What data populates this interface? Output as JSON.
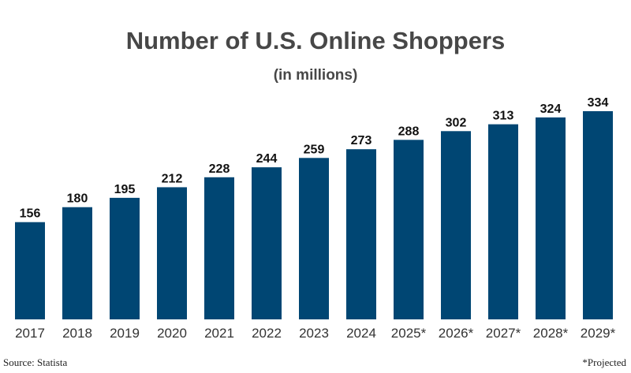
{
  "chart_data": {
    "type": "bar",
    "title": "Number of U.S. Online Shoppers",
    "subtitle": "(in millions)",
    "categories": [
      "2017",
      "2018",
      "2019",
      "2020",
      "2021",
      "2022",
      "2023",
      "2024",
      "2025*",
      "2026*",
      "2027*",
      "2028*",
      "2029*"
    ],
    "values": [
      156,
      180,
      195,
      212,
      228,
      244,
      259,
      273,
      288,
      302,
      313,
      324,
      334
    ],
    "xlabel": "",
    "ylabel": "",
    "ylim": [
      0,
      334
    ],
    "grid": false,
    "legend": "none",
    "bar_color": "#004673"
  },
  "footer": {
    "source": "Source: Statista",
    "note": "*Projected"
  }
}
